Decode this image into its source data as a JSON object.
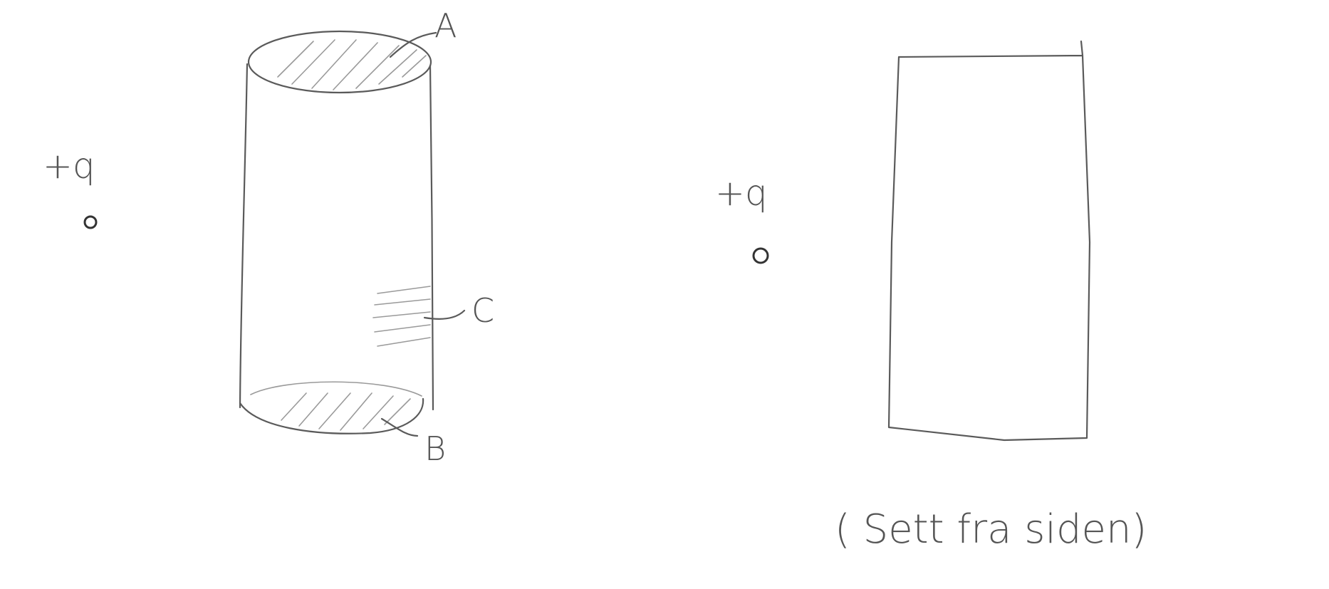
{
  "labels": {
    "point_a": "A",
    "point_b": "B",
    "point_c": "C",
    "charge_left": "+q",
    "charge_right": "+q",
    "caption": "( Sett fra siden)"
  }
}
